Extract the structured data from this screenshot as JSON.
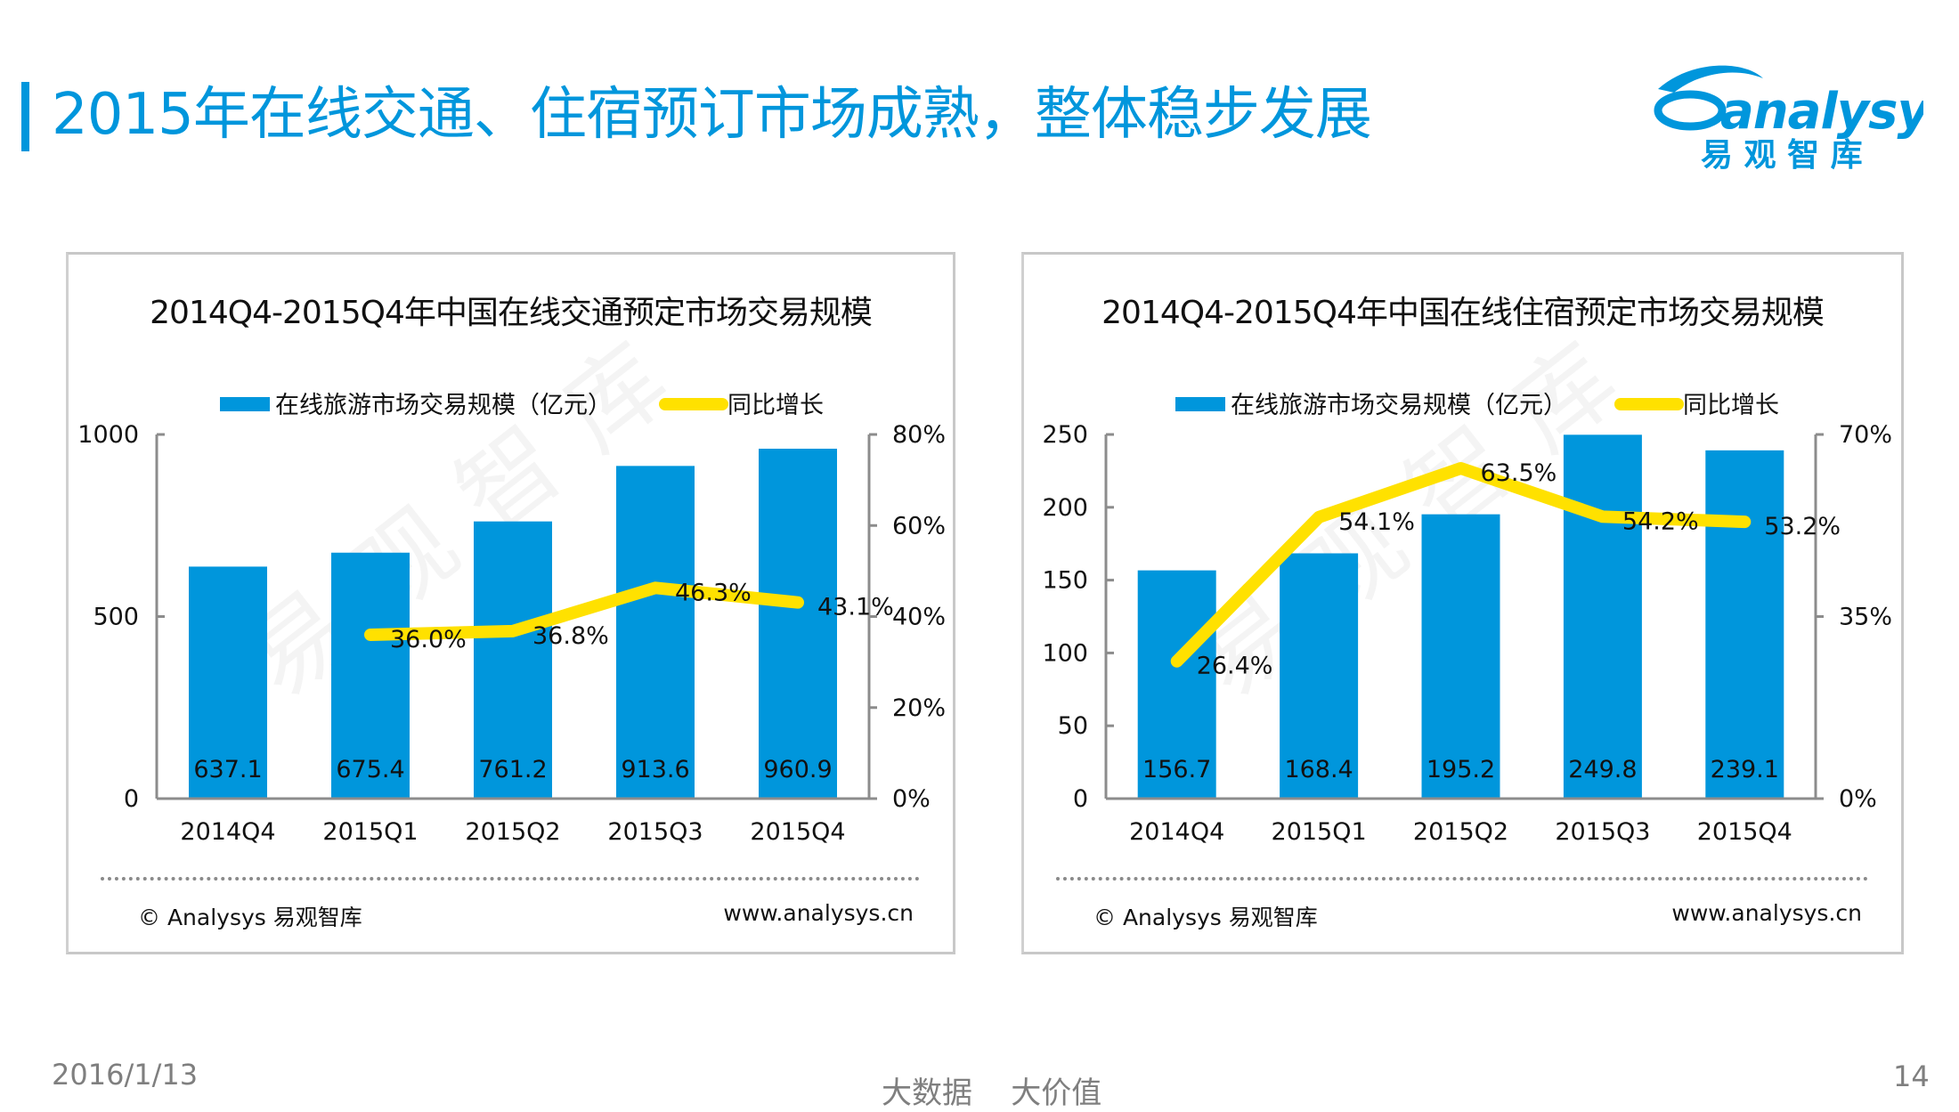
{
  "page": {
    "title": "2015年在线交通、住宿预订市场成熟，整体稳步发展",
    "accent_color": "#0096dc",
    "logo": {
      "wordmark": "analysys",
      "cn": "易 观 智 库"
    },
    "footer": {
      "date": "2016/1/13",
      "slogan": "大数据    大价值",
      "page_number": "14"
    }
  },
  "colors": {
    "bar": "#0096dc",
    "line": "#ffe100",
    "axis": "#8c8c8c",
    "panel_border": "#c8c8c8"
  },
  "chart_data": [
    {
      "type": "bar+line",
      "title": "2014Q4-2015Q4年中国在线交通预定市场交易规模",
      "categories": [
        "2014Q4",
        "2015Q1",
        "2015Q2",
        "2015Q3",
        "2015Q4"
      ],
      "series": [
        {
          "name": "在线旅游市场交易规模（亿元）",
          "type": "bar",
          "axis": "left",
          "values": [
            637.1,
            675.4,
            761.2,
            913.6,
            960.9
          ],
          "labels": [
            "637.1",
            "675.4",
            "761.2",
            "913.6",
            "960.9"
          ]
        },
        {
          "name": "同比增长",
          "type": "line",
          "axis": "right",
          "values": [
            null,
            36.0,
            36.8,
            46.3,
            43.1
          ],
          "labels": [
            "",
            "36.0%",
            "36.8%",
            "46.3%",
            "43.1%"
          ]
        }
      ],
      "y_left": {
        "range": [
          0,
          1000
        ],
        "ticks": [
          0,
          500,
          1000
        ],
        "tick_labels": [
          "0",
          "500",
          "1000"
        ]
      },
      "y_right": {
        "range": [
          0,
          80
        ],
        "ticks": [
          0,
          20,
          40,
          60,
          80
        ],
        "tick_labels": [
          "0%",
          "20%",
          "40%",
          "60%",
          "80%"
        ]
      },
      "legend": {
        "position": "top",
        "items": [
          "在线旅游市场交易规模（亿元）",
          "同比增长"
        ]
      },
      "watermark": "易观智库",
      "source_left": "© Analysys 易观智库",
      "source_right": "www.analysys.cn",
      "grid": false
    },
    {
      "type": "bar+line",
      "title": "2014Q4-2015Q4年中国在线住宿预定市场交易规模",
      "categories": [
        "2014Q4",
        "2015Q1",
        "2015Q2",
        "2015Q3",
        "2015Q4"
      ],
      "series": [
        {
          "name": "在线旅游市场交易规模（亿元）",
          "type": "bar",
          "axis": "left",
          "values": [
            156.7,
            168.4,
            195.2,
            249.8,
            239.1
          ],
          "labels": [
            "156.7",
            "168.4",
            "195.2",
            "249.8",
            "239.1"
          ]
        },
        {
          "name": "同比增长",
          "type": "line",
          "axis": "right",
          "values": [
            26.4,
            54.1,
            63.5,
            54.2,
            53.2
          ],
          "labels": [
            "26.4%",
            "54.1%",
            "63.5%",
            "54.2%",
            "53.2%"
          ]
        }
      ],
      "y_left": {
        "range": [
          0,
          250
        ],
        "ticks": [
          0,
          50,
          100,
          150,
          200,
          250
        ],
        "tick_labels": [
          "0",
          "50",
          "100",
          "150",
          "200",
          "250"
        ]
      },
      "y_right": {
        "range": [
          0,
          70
        ],
        "ticks": [
          0,
          35,
          70
        ],
        "tick_labels": [
          "0%",
          "35%",
          "70%"
        ]
      },
      "legend": {
        "position": "top",
        "items": [
          "在线旅游市场交易规模（亿元）",
          "同比增长"
        ]
      },
      "watermark": "易观智库",
      "source_left": "© Analysys 易观智库",
      "source_right": "www.analysys.cn",
      "grid": false
    }
  ]
}
